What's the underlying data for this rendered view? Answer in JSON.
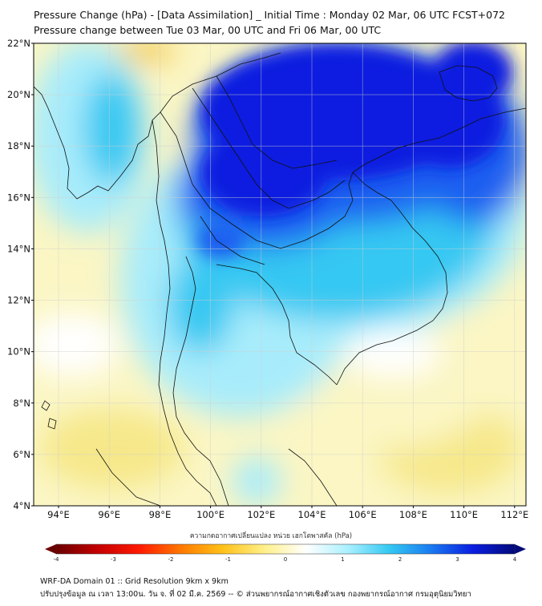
{
  "header": {
    "title_line1": "Pressure Change (hPa) - [Data Assimilation] _ Initial Time : Monday 02 Mar, 06 UTC FCST+072",
    "title_line2": "Pressure change between Tue 03 Mar, 00 UTC and Fri 06 Mar, 00 UTC"
  },
  "map": {
    "lat_labels": [
      "22°N",
      "20°N",
      "18°N",
      "16°N",
      "14°N",
      "12°N",
      "10°N",
      "8°N",
      "6°N",
      "4°N"
    ],
    "lon_labels": [
      "94°E",
      "96°E",
      "98°E",
      "100°E",
      "102°E",
      "104°E",
      "106°E",
      "108°E",
      "110°E",
      "112°E"
    ],
    "field_colors": {
      "deep_blue": "#0a1ee0",
      "blue": "#1f5ef0",
      "cyan": "#34c8f2",
      "light_cyan": "#a8ecfb",
      "white": "#ffffff",
      "light_yellow": "#fbf6c4",
      "yellow": "#f6e88a",
      "orange": "#f2c84a"
    }
  },
  "colorbar": {
    "title": "ความกดอากาศเปลี่ยนแปลง หน่วย เฮกโตพาสคัล (hPa)",
    "ticks": [
      "-4",
      "-3",
      "-2",
      "-1",
      "0",
      "1",
      "2",
      "3",
      "4"
    ],
    "range": [
      -4,
      4
    ],
    "colors": [
      "#6b0000",
      "#c40000",
      "#ff1a00",
      "#ff7a00",
      "#ffc21a",
      "#fff08a",
      "#ffffff",
      "#aaf0ff",
      "#34c8f2",
      "#1a7af0",
      "#0a1ee0",
      "#030a7a"
    ]
  },
  "footer": {
    "line1": "WRF-DA Domain 01 :: Grid Resolution 9km x 9km",
    "line2": "ปรับปรุงข้อมูล ณ เวลา 13:00น. วัน จ. ที่ 02 มี.ค. 2569 -- © ส่วนพยากรณ์อากาศเชิงตัวเลข กองพยากรณ์อากาศ กรมอุตุนิยมวิทยา"
  }
}
